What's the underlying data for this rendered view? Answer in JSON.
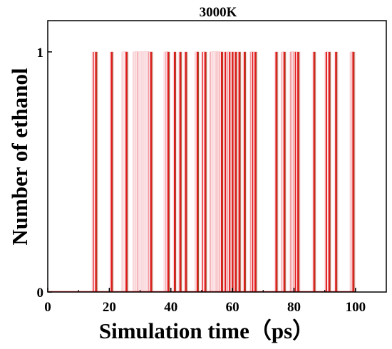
{
  "chart_data": {
    "type": "bar",
    "title": "3000K",
    "xlabel": "Simulation time（ps）",
    "ylabel": "Number of ethanol",
    "xlim": [
      0,
      110
    ],
    "ylim": [
      0,
      1.13
    ],
    "xticks": [
      "0",
      "20",
      "40",
      "60",
      "80",
      "100"
    ],
    "yticks": [
      "0",
      "1"
    ],
    "grid": false,
    "series_color": "#e31a1c",
    "x": [
      15.0,
      15.7,
      20.8,
      24.6,
      25.0,
      25.3,
      25.6,
      28.2,
      28.6,
      29.0,
      29.4,
      29.9,
      30.3,
      30.7,
      31.1,
      31.5,
      31.9,
      32.3,
      32.7,
      33.1,
      33.6,
      38.3,
      38.7,
      39.2,
      41.3,
      43.1,
      44.9,
      48.3,
      48.7,
      50.5,
      51.2,
      53.1,
      53.6,
      54.0,
      54.4,
      54.8,
      55.2,
      55.7,
      56.1,
      56.6,
      57.8,
      58.7,
      59.2,
      60.1,
      61.1,
      62.3,
      64.0,
      66.2,
      66.7,
      67.5,
      74.3,
      76.4,
      76.9,
      79.1,
      79.6,
      80.1,
      80.6,
      81.4,
      86.6,
      90.6,
      91.5,
      93.7,
      98.8,
      99.3
    ],
    "values": [
      1,
      1,
      1,
      1,
      1,
      1,
      1,
      1,
      1,
      1,
      1,
      1,
      1,
      1,
      1,
      1,
      1,
      1,
      1,
      1,
      1,
      1,
      1,
      1,
      1,
      1,
      1,
      1,
      1,
      1,
      1,
      1,
      1,
      1,
      1,
      1,
      1,
      1,
      1,
      1,
      1,
      1,
      1,
      1,
      1,
      1,
      1,
      1,
      1,
      1,
      1,
      1,
      1,
      1,
      1,
      1,
      1,
      1,
      1,
      1,
      1,
      1,
      1,
      1
    ]
  }
}
